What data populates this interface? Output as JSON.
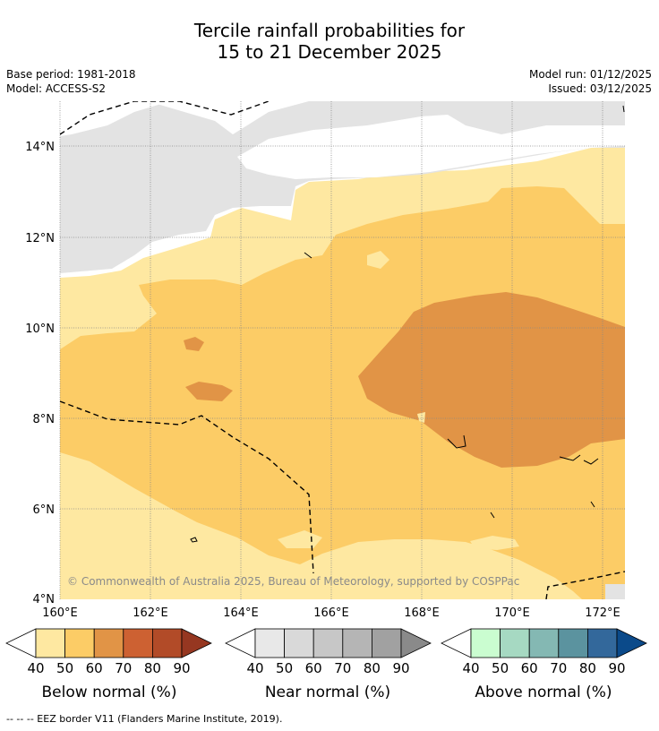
{
  "title": {
    "line1": "Tercile rainfall probabilities for",
    "line2": "15 to 21 December 2025"
  },
  "meta": {
    "base_period": "Base period: 1981-2018",
    "model": "Model: ACCESS-S2",
    "model_run": "Model run: 01/12/2025",
    "issued": "Issued: 03/12/2025"
  },
  "map": {
    "lat_labels": [
      "14°N",
      "12°N",
      "10°N",
      "8°N",
      "6°N",
      "4°N"
    ],
    "lon_labels": [
      "160°E",
      "162°E",
      "164°E",
      "166°E",
      "168°E",
      "170°E",
      "172°E"
    ],
    "copyright": "© Commonwealth of Australia 2025, Bureau of Meteorology, supported by COSPPac",
    "colors": {
      "land_mask": "#e3e3e3",
      "below_40": "#fee8a1",
      "below_50": "#fccc66",
      "below_60": "#e19446",
      "grid": "#888888"
    }
  },
  "legends": [
    {
      "name": "below",
      "label": "Below normal (%)",
      "colors": [
        "#fee8a1",
        "#fccc66",
        "#e19446",
        "#cd6132",
        "#b24b28",
        "#963721"
      ],
      "ticks": [
        "40",
        "50",
        "60",
        "70",
        "80",
        "90"
      ]
    },
    {
      "name": "near",
      "label": "Near normal (%)",
      "colors": [
        "#e8e8e8",
        "#d9d9d9",
        "#c7c7c7",
        "#b5b5b5",
        "#a1a1a1",
        "#8a8a8a"
      ],
      "ticks": [
        "40",
        "50",
        "60",
        "70",
        "80",
        "90"
      ]
    },
    {
      "name": "above",
      "label": "Above normal (%)",
      "colors": [
        "#cafdd0",
        "#a6d9c2",
        "#84b8b3",
        "#5b939f",
        "#33689b",
        "#0b4a8a"
      ],
      "ticks": [
        "40",
        "50",
        "60",
        "70",
        "80",
        "90"
      ]
    }
  ],
  "footnote": "--  --  -- EEZ border V11 (Flanders Marine Institute, 2019)."
}
